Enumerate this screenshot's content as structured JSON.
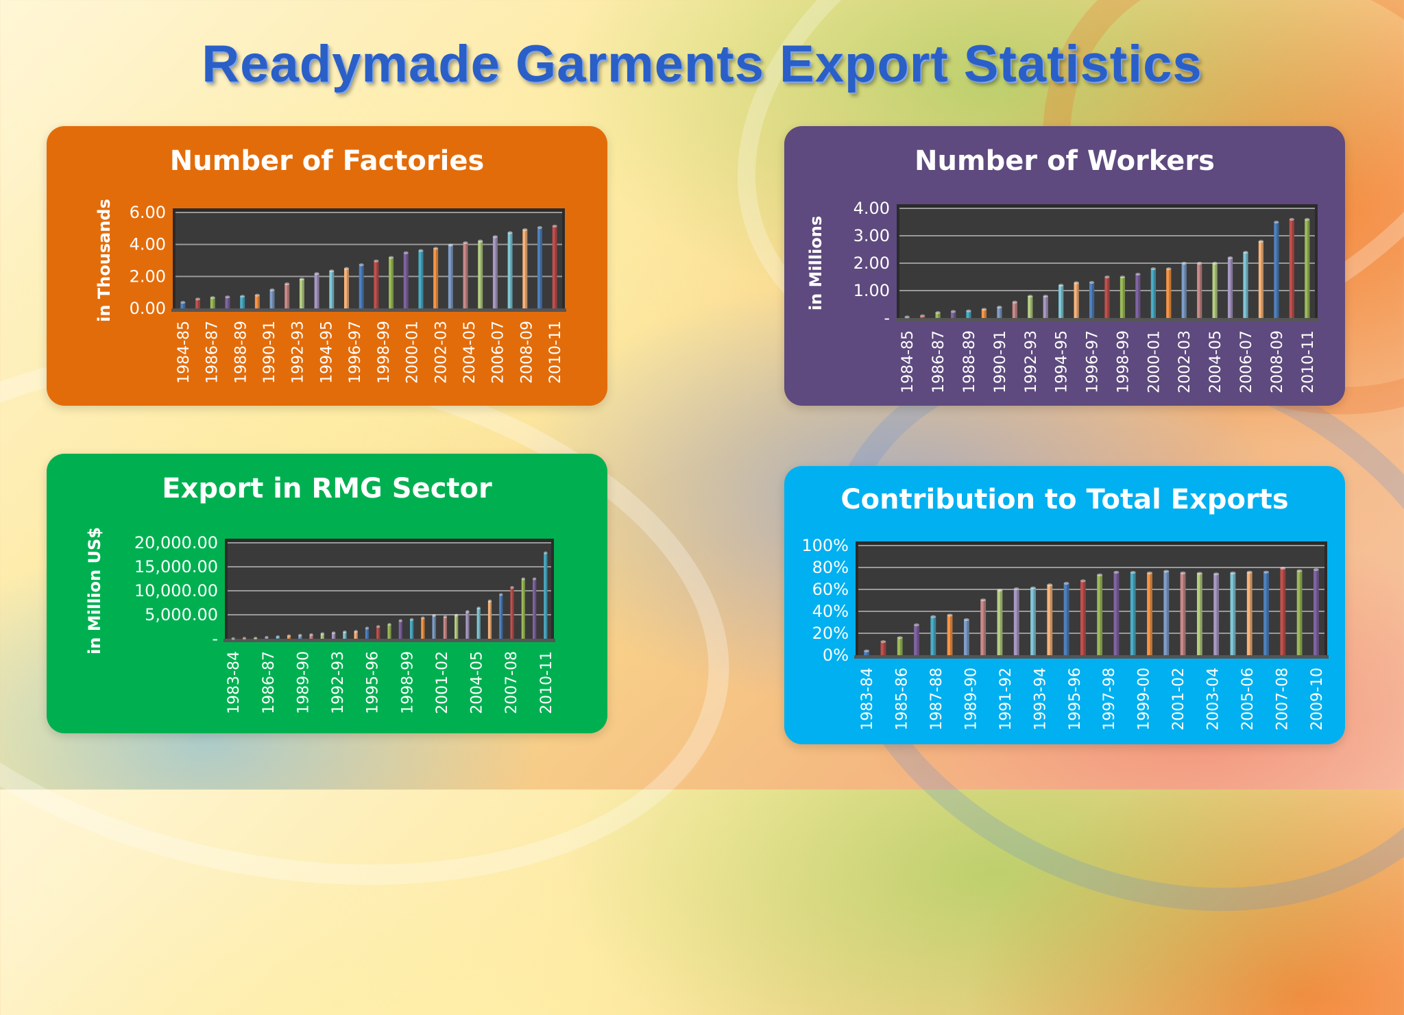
{
  "page_title": "Readymade Garments Export Statistics",
  "chart_data": [
    {
      "id": "factories",
      "type": "bar",
      "title": "Number of Factories",
      "ylabel": "in Thousands",
      "panel_color": "#e36c0a",
      "ylim": [
        0,
        6
      ],
      "y_ticks": [
        "0.00",
        "2.00",
        "4.00",
        "6.00"
      ],
      "tick_labels": [
        "1984-85",
        "1986-87",
        "1988-89",
        "1990-91",
        "1992-93",
        "1994-95",
        "1996-97",
        "1998-99",
        "2000-01",
        "2002-03",
        "2004-05",
        "2006-07",
        "2008-09",
        "2010-11"
      ],
      "values": [
        0.38,
        0.59,
        0.68,
        0.72,
        0.76,
        0.83,
        1.16,
        1.54,
        1.84,
        2.18,
        2.35,
        2.5,
        2.73,
        2.97,
        3.19,
        3.48,
        3.62,
        3.76,
        3.96,
        4.11,
        4.22,
        4.49,
        4.74,
        4.93,
        5.06,
        5.15
      ]
    },
    {
      "id": "workers",
      "type": "bar",
      "title": "Number of Workers",
      "ylabel": "in Millions",
      "panel_color": "#5e4a7e",
      "ylim": [
        0,
        4
      ],
      "y_ticks": [
        "-",
        "1.00",
        "2.00",
        "3.00",
        "4.00"
      ],
      "tick_labels": [
        "1984-85",
        "1986-87",
        "1988-89",
        "1990-91",
        "1992-93",
        "1994-95",
        "1996-97",
        "1998-99",
        "2000-01",
        "2002-03",
        "2004-05",
        "2006-07",
        "2008-09",
        "2010-11"
      ],
      "values": [
        0.04,
        0.08,
        0.2,
        0.24,
        0.26,
        0.32,
        0.4,
        0.58,
        0.8,
        0.8,
        1.2,
        1.29,
        1.3,
        1.5,
        1.5,
        1.6,
        1.8,
        1.8,
        2.0,
        2.0,
        2.0,
        2.2,
        2.4,
        2.8,
        3.5,
        3.6,
        3.6
      ]
    },
    {
      "id": "export",
      "type": "bar",
      "title": "Export in RMG Sector",
      "ylabel": "in Million US$",
      "panel_color": "#00b050",
      "ylim": [
        0,
        20000
      ],
      "y_ticks": [
        "-",
        "5,000.00",
        "10,000.00",
        "15,000.00",
        "20,000.00"
      ],
      "tick_labels": [
        "1983-84",
        "1986-87",
        "1989-90",
        "1992-93",
        "1995-96",
        "1998-99",
        "2001-02",
        "2004-05",
        "2007-08",
        "2010-11"
      ],
      "values": [
        32,
        116,
        131,
        298,
        434,
        624,
        736,
        866,
        1064,
        1240,
        1445,
        1556,
        2228,
        2547,
        3001,
        3782,
        4020,
        4349,
        4860,
        4583,
        4912,
        5686,
        6418,
        7901,
        9211,
        10700,
        12497,
        12497,
        17914
      ]
    },
    {
      "id": "contribution",
      "type": "bar",
      "title": "Contribution to Total Exports",
      "ylabel": "",
      "panel_color": "#00b0f0",
      "ylim": [
        0,
        100
      ],
      "y_ticks": [
        "0%",
        "20%",
        "40%",
        "60%",
        "80%",
        "100%"
      ],
      "tick_labels": [
        "1983-84",
        "1985-86",
        "1987-88",
        "1989-90",
        "1991-92",
        "1993-94",
        "1995-96",
        "1997-98",
        "1999-00",
        "2001-02",
        "2003-04",
        "2005-06",
        "2007-08",
        "2009-10"
      ],
      "values": [
        3.9,
        12.4,
        16.1,
        27.7,
        35.2,
        36.6,
        32.5,
        50.5,
        59.3,
        60.6,
        61.4,
        64.2,
        65.6,
        67.9,
        73.3,
        75.7,
        75.6,
        75.1,
        76.6,
        75.1,
        74.8,
        74.2,
        75.1,
        75.8,
        75.8,
        79.3,
        77.1,
        78.1
      ]
    }
  ]
}
